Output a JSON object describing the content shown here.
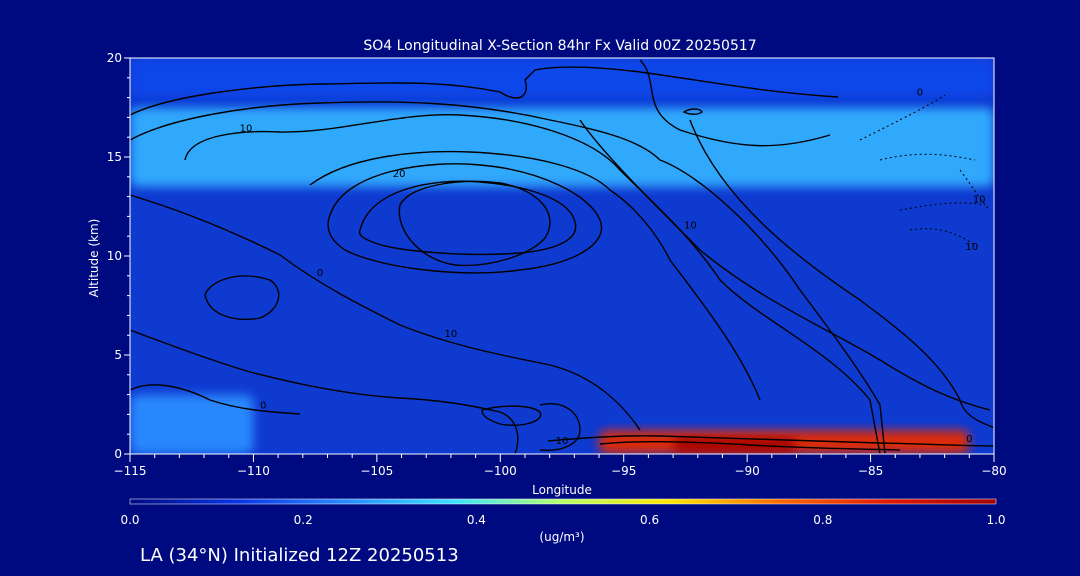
{
  "chart_data": {
    "type": "heatmap",
    "title": "SO4 Longitudinal X-Section 84hr  Fx Valid 00Z 20250517",
    "xlabel": "Longitude",
    "ylabel": "Altitude (km)",
    "xlim": [
      -115,
      -80
    ],
    "ylim": [
      0,
      20
    ],
    "x_ticks": [
      -115,
      -110,
      -105,
      -100,
      -95,
      -90,
      -85,
      -80
    ],
    "x_tick_labels": [
      "−115",
      "−110",
      "−105",
      "−100",
      "−95",
      "−90",
      "−85",
      "−80"
    ],
    "y_ticks": [
      0,
      5,
      10,
      15,
      20
    ],
    "y_tick_labels": [
      "0",
      "5",
      "10",
      "15",
      "20"
    ],
    "colorbar": {
      "min": 0.0,
      "max": 1.0,
      "units": "(ug/m³)",
      "tick_values": [
        0.0,
        0.2,
        0.4,
        0.6,
        0.8,
        1.0
      ],
      "tick_labels": [
        "0.0",
        "0.2",
        "0.4",
        "0.6",
        "0.8",
        "1.0"
      ],
      "colors": [
        "#000a80",
        "#0a35e6",
        "#2a8cff",
        "#3ee0ff",
        "#b8ff6a",
        "#ffe600",
        "#ff6a00",
        "#e01a00",
        "#a00000"
      ]
    },
    "field_features": [
      {
        "lon": [
          -115,
          -80
        ],
        "alt": [
          13.5,
          17.5
        ],
        "value": 0.3
      },
      {
        "lon": [
          -96,
          -81
        ],
        "alt": [
          0,
          1.2
        ],
        "value": 0.85
      },
      {
        "lon": [
          -93,
          -88
        ],
        "alt": [
          0.1,
          0.8
        ],
        "value": 1.0
      },
      {
        "lon": [
          -115,
          -80
        ],
        "alt": [
          18,
          20
        ],
        "value": 0.15
      },
      {
        "lon": [
          -115,
          -110
        ],
        "alt": [
          0,
          3
        ],
        "value": 0.25
      }
    ],
    "contour_labels": [
      {
        "text": "10",
        "lon": -110.3,
        "alt": 16.3
      },
      {
        "text": "20",
        "lon": -104.1,
        "alt": 14.0
      },
      {
        "text": "0",
        "lon": -107.3,
        "alt": 9.0
      },
      {
        "text": "10",
        "lon": -102.0,
        "alt": 5.9
      },
      {
        "text": "0",
        "lon": -109.6,
        "alt": 2.3
      },
      {
        "text": "10",
        "lon": -97.5,
        "alt": 0.5
      },
      {
        "text": "10",
        "lon": -92.3,
        "alt": 11.4
      },
      {
        "text": "0",
        "lon": -83.0,
        "alt": 18.1
      },
      {
        "text": "10",
        "lon": -80.6,
        "alt": 12.7
      },
      {
        "text": "10",
        "lon": -80.9,
        "alt": 10.3
      },
      {
        "text": "0",
        "lon": -81.0,
        "alt": 0.6
      }
    ]
  },
  "footer": {
    "info": "LA (34°N) Initialized 12Z 20250513"
  }
}
